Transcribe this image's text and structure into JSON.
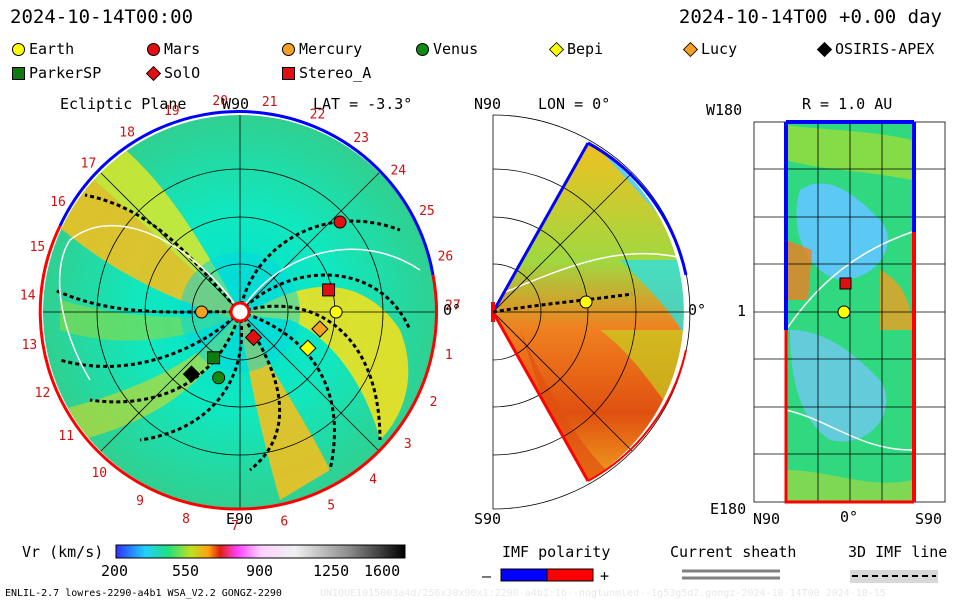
{
  "header": {
    "left_time": "2024-10-14T00:00",
    "right_time": "2024-10-14T00 +0.00 day"
  },
  "legend": [
    {
      "name": "Earth",
      "shape": "circle",
      "color": "#ffff00"
    },
    {
      "name": "Mars",
      "shape": "circle",
      "color": "#e01010"
    },
    {
      "name": "Mercury",
      "shape": "circle",
      "color": "#f4a020"
    },
    {
      "name": "Venus",
      "shape": "circle",
      "color": "#108a10"
    },
    {
      "name": "Bepi",
      "shape": "diamond",
      "color": "#ffff00"
    },
    {
      "name": "Lucy",
      "shape": "diamond",
      "color": "#f4a020"
    },
    {
      "name": "OSIRIS-APEX",
      "shape": "diamond",
      "color": "#000000"
    },
    {
      "name": "ParkerSP",
      "shape": "square",
      "color": "#107a10"
    },
    {
      "name": "SolO",
      "shape": "diamond",
      "color": "#e01010"
    },
    {
      "name": "Stereo_A",
      "shape": "square",
      "color": "#e01010"
    }
  ],
  "panel_ecliptic": {
    "title": "Ecliptic Plane",
    "lat": "LAT = -3.3°",
    "top_label": "W90",
    "bottom_label": "E90",
    "right_label": "0°",
    "ticks": [
      "1",
      "2",
      "3",
      "4",
      "5",
      "6",
      "7",
      "8",
      "9",
      "10",
      "11",
      "12",
      "13",
      "14",
      "15",
      "16",
      "17",
      "18",
      "19",
      "20",
      "21",
      "22",
      "23",
      "24",
      "25",
      "26",
      "27"
    ]
  },
  "panel_meridional": {
    "lon": "LON = 0°",
    "top_label": "N90",
    "bottom_label": "S90",
    "right_label": "0°"
  },
  "panel_latlon": {
    "title": "R = 1.0 AU",
    "top_left": "W180",
    "mid_left": "1",
    "bottom_left": "E180",
    "x_labels": [
      "N90",
      "0°",
      "S90"
    ]
  },
  "colorbar": {
    "label": "Vr (km/s)",
    "ticks": [
      "200",
      "550",
      "900",
      "1250",
      "1600"
    ],
    "min": 200,
    "max": 1600
  },
  "imf_polarity": {
    "label": "IMF polarity",
    "minus": "–",
    "plus": "+",
    "neg_color": "#0000ff",
    "pos_color": "#ff0000"
  },
  "current_sheath": {
    "label": "Current sheath"
  },
  "imf_line": {
    "label": "3D IMF line"
  },
  "footer": {
    "left": "ENLIL-2.7 lowres-2290-a4b1 WSA_V2.2 GONGZ-2290",
    "right": "UNIQUE1015003a4d/256x30x90x1:2290-a4b1:16--nogtunmled--1g53g5d2.gongz-2024-10-14T00    2024-10-15"
  },
  "chart_data": {
    "type": "heatmap",
    "title": "Ecliptic Plane",
    "quantity": "Vr (km/s)",
    "range": [
      200,
      1600
    ],
    "ecliptic_bodies": [
      {
        "name": "Earth",
        "r_au": 1.0,
        "lon_deg": 0
      },
      {
        "name": "Mars",
        "r_au": 1.4,
        "lon_deg": 42
      },
      {
        "name": "Mercury",
        "r_au": 0.4,
        "lon_deg": -180
      },
      {
        "name": "Venus",
        "r_au": 0.72,
        "lon_deg": -108
      },
      {
        "name": "Bepi",
        "r_au": 0.8,
        "lon_deg": -28
      },
      {
        "name": "Lucy",
        "r_au": 0.85,
        "lon_deg": -12
      },
      {
        "name": "OSIRIS-APEX",
        "r_au": 0.82,
        "lon_deg": -128
      },
      {
        "name": "ParkerSP",
        "r_au": 0.55,
        "lon_deg": -120
      },
      {
        "name": "SolO",
        "r_au": 0.3,
        "lon_deg": -62
      },
      {
        "name": "Stereo_A",
        "r_au": 0.95,
        "lon_deg": 14
      }
    ]
  }
}
